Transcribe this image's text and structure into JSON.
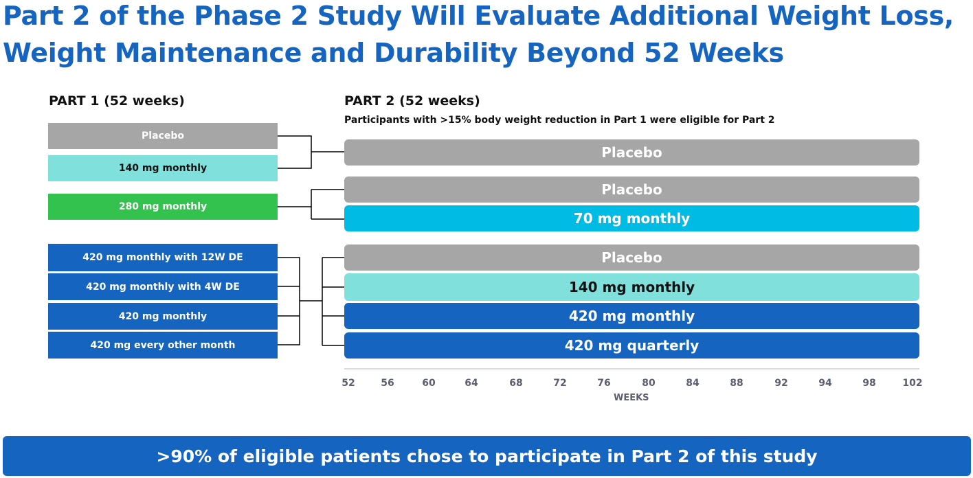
{
  "title": {
    "line1": "Part 2 of the Phase 2 Study Will Evaluate Additional Weight Loss,",
    "line2": "Weight Maintenance and Durability Beyond 52 Weeks"
  },
  "part1": {
    "header": "PART 1 (52 weeks)",
    "arms": [
      "Placebo",
      "140 mg monthly",
      "280 mg monthly",
      "420 mg monthly with 12W DE",
      "420 mg monthly with 4W DE",
      "420 mg monthly",
      "420 mg every other month"
    ]
  },
  "part2": {
    "header": "PART 2 (52 weeks)",
    "subtitle": "Participants with >15% body weight reduction in Part 1 were eligible for Part 2",
    "arms": [
      "Placebo",
      "Placebo",
      "70 mg monthly",
      "Placebo",
      "140 mg monthly",
      "420 mg monthly",
      "420 mg quarterly"
    ]
  },
  "axis": {
    "label": "WEEKS",
    "ticks": [
      "52",
      "56",
      "60",
      "64",
      "68",
      "72",
      "76",
      "80",
      "84",
      "88",
      "92",
      "94",
      "98",
      "102"
    ]
  },
  "colors": {
    "placebo": "#a6a6a6",
    "dose_140": "#80e0dc",
    "dose_280": "#33c24e",
    "dose_420": "#1565c0",
    "dose_70": "#00bce4",
    "title": "#1565c0"
  },
  "banner": ">90% of eligible patients chose to participate in Part 2 of this study"
}
